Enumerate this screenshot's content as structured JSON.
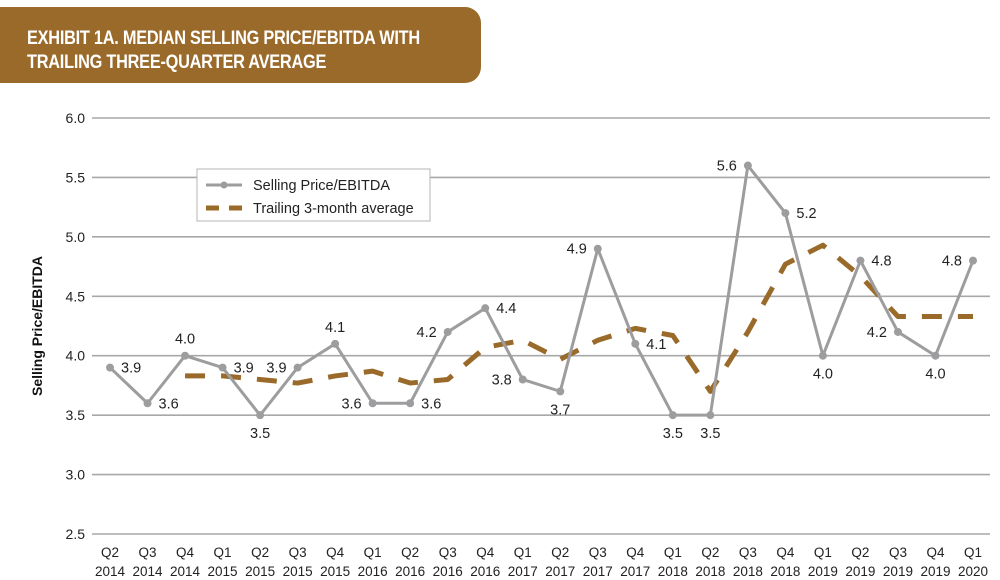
{
  "banner": {
    "line1": "EXHIBIT 1A. MEDIAN SELLING PRICE/EBITDA WITH",
    "line2": "TRAILING THREE-QUARTER AVERAGE"
  },
  "colors": {
    "banner": "#9a6a2a",
    "series_line": "#9d9d9f",
    "average_line": "#9a6a2a",
    "grid": "#a8a8a8"
  },
  "chart_data": {
    "type": "line",
    "title": "EXHIBIT 1A. MEDIAN SELLING PRICE/EBITDA WITH TRAILING THREE-QUARTER AVERAGE",
    "xlabel": "",
    "ylabel": "Selling Price/EBITDA",
    "ylim": [
      2.5,
      6.0
    ],
    "yticks": [
      "6.0",
      "5.5",
      "5.0",
      "4.5",
      "4.0",
      "3.5",
      "3.0",
      "2.5"
    ],
    "ytick_values": [
      6.0,
      5.5,
      5.0,
      4.5,
      4.0,
      3.5,
      3.0,
      2.5
    ],
    "grid": true,
    "legend_position": "top-left",
    "categories": [
      [
        "Q2",
        "2014"
      ],
      [
        "Q3",
        "2014"
      ],
      [
        "Q4",
        "2014"
      ],
      [
        "Q1",
        "2015"
      ],
      [
        "Q2",
        "2015"
      ],
      [
        "Q3",
        "2015"
      ],
      [
        "Q4",
        "2015"
      ],
      [
        "Q1",
        "2016"
      ],
      [
        "Q2",
        "2016"
      ],
      [
        "Q3",
        "2016"
      ],
      [
        "Q4",
        "2016"
      ],
      [
        "Q1",
        "2017"
      ],
      [
        "Q2",
        "2017"
      ],
      [
        "Q3",
        "2017"
      ],
      [
        "Q4",
        "2017"
      ],
      [
        "Q1",
        "2018"
      ],
      [
        "Q2",
        "2018"
      ],
      [
        "Q3",
        "2018"
      ],
      [
        "Q4",
        "2018"
      ],
      [
        "Q1",
        "2019"
      ],
      [
        "Q2",
        "2019"
      ],
      [
        "Q3",
        "2019"
      ],
      [
        "Q4",
        "2019"
      ],
      [
        "Q1",
        "2020"
      ]
    ],
    "series": [
      {
        "name": "Selling Price/EBITDA",
        "style": "solid-with-markers",
        "values": [
          3.9,
          3.6,
          4.0,
          3.9,
          3.5,
          3.9,
          4.1,
          3.6,
          3.6,
          4.2,
          4.4,
          3.8,
          3.7,
          4.9,
          4.1,
          3.5,
          3.5,
          5.6,
          5.2,
          4.0,
          4.8,
          4.2,
          4.0,
          4.8
        ],
        "labels": [
          "3.9",
          "3.6",
          "4.0",
          "3.9",
          "3.5",
          "3.9",
          "4.1",
          "3.6",
          "3.6",
          "4.2",
          "4.4",
          "3.8",
          "3.7",
          "4.9",
          "4.1",
          "3.5",
          "3.5",
          "5.6",
          "5.2",
          "4.0",
          "4.8",
          "4.2",
          "4.0",
          "4.8"
        ],
        "label_pos": [
          "r",
          "r",
          "t",
          "r",
          "b",
          "l",
          "t",
          "l",
          "r",
          "l",
          "r",
          "l",
          "b",
          "l",
          "r",
          "b",
          "b",
          "l",
          "r",
          "b",
          "r",
          "l",
          "b",
          "l"
        ]
      },
      {
        "name": "Trailing 3-month average",
        "style": "dashed",
        "values": [
          null,
          null,
          3.83,
          3.83,
          3.8,
          3.77,
          3.83,
          3.87,
          3.77,
          3.8,
          4.07,
          4.13,
          3.97,
          4.13,
          4.23,
          4.17,
          3.7,
          4.2,
          4.77,
          4.93,
          4.67,
          4.33,
          4.33,
          4.33
        ]
      }
    ]
  }
}
